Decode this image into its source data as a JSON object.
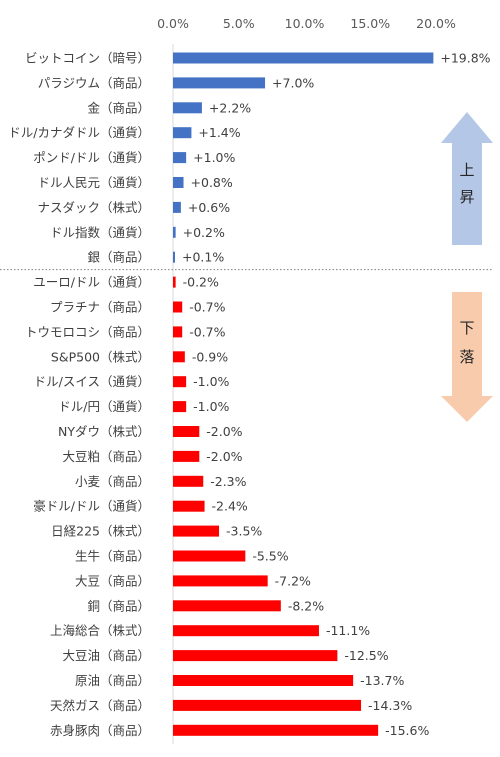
{
  "chart_data": {
    "type": "bar",
    "orientation": "horizontal",
    "unit": "%",
    "xlim": [
      0,
      20
    ],
    "xticks": [
      "0.0%",
      "5.0%",
      "10.0%",
      "15.0%",
      "20.0%"
    ],
    "tick_values": [
      0,
      5,
      10,
      15,
      20
    ],
    "grid": false,
    "colors": {
      "positive": "#4472C4",
      "negative": "#FF0000",
      "up_arrow": "#B4C7E7",
      "down_arrow": "#F8CBAD"
    },
    "up_label": "上昇",
    "down_label": "下落",
    "categories": [
      "ビットコイン（暗号）",
      "パラジウム（商品）",
      "金（商品）",
      "ドル/カナダドル（通貨）",
      "ポンド/ドル（通貨）",
      "ドル人民元（通貨）",
      "ナスダック（株式）",
      "ドル指数（通貨）",
      "銀（商品）",
      "ユーロ/ドル（通貨）",
      "プラチナ（商品）",
      "トウモロコシ（商品）",
      "S&P500（株式）",
      "ドル/スイス（通貨）",
      "ドル/円（通貨）",
      "NYダウ（株式）",
      "大豆粕（商品）",
      "小麦（商品）",
      "豪ドル/ドル（通貨）",
      "日経225（株式）",
      "生牛（商品）",
      "大豆（商品）",
      "銅（商品）",
      "上海総合（株式）",
      "大豆油（商品）",
      "原油（商品）",
      "天然ガス（商品）",
      "赤身豚肉（商品）"
    ],
    "values": [
      19.8,
      7.0,
      2.2,
      1.4,
      1.0,
      0.8,
      0.6,
      0.2,
      0.1,
      -0.2,
      -0.7,
      -0.7,
      -0.9,
      -1.0,
      -1.0,
      -2.0,
      -2.0,
      -2.3,
      -2.4,
      -3.5,
      -5.5,
      -7.2,
      -8.2,
      -11.1,
      -12.5,
      -13.7,
      -14.3,
      -15.6
    ],
    "data_labels": [
      "+19.8%",
      "+7.0%",
      "+2.2%",
      "+1.4%",
      "+1.0%",
      "+0.8%",
      "+0.6%",
      "+0.2%",
      "+0.1%",
      "-0.2%",
      "-0.7%",
      "-0.7%",
      "-0.9%",
      "-1.0%",
      "-1.0%",
      "-2.0%",
      "-2.0%",
      "-2.3%",
      "-2.4%",
      "-3.5%",
      "-5.5%",
      "-7.2%",
      "-8.2%",
      "-11.1%",
      "-12.5%",
      "-13.7%",
      "-14.3%",
      "-15.6%"
    ]
  }
}
